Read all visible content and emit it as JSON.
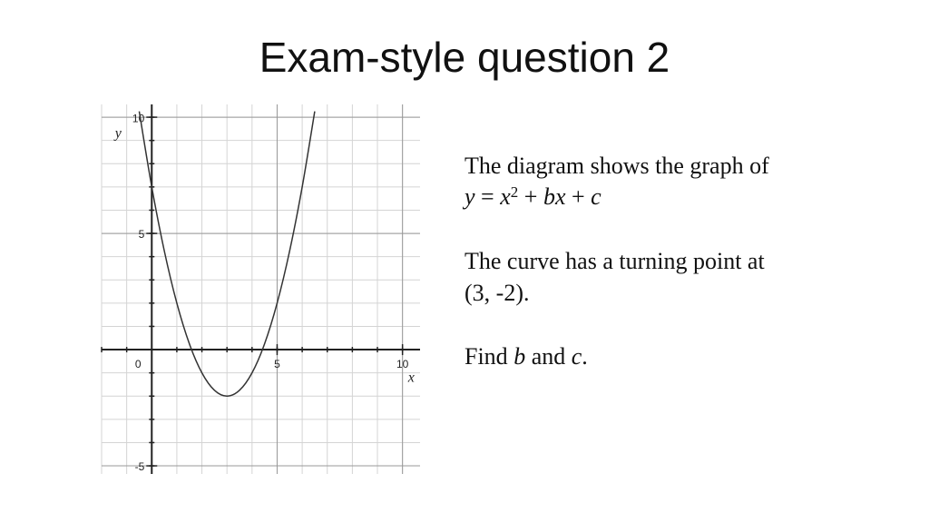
{
  "title": "Exam-style question 2",
  "chart_data": {
    "type": "line",
    "x": [
      -0.5,
      0,
      0.5,
      1,
      1.5,
      2,
      2.5,
      3,
      3.5,
      4,
      4.5,
      5,
      5.5,
      6,
      6.5
    ],
    "series": [
      {
        "color": "#333333",
        "values": [
          10.25,
          7,
          4.25,
          2,
          0.25,
          -1,
          -1.75,
          -2,
          -1.75,
          -1,
          0.25,
          2,
          4.25,
          7,
          10.25
        ]
      }
    ],
    "xlim": [
      -2,
      10.7
    ],
    "ylim": [
      -5.35,
      10.55
    ],
    "xticks": [
      0,
      5,
      10
    ],
    "yticks": [
      -5,
      5,
      10
    ],
    "xlabel": "x",
    "ylabel": "y",
    "grid": true,
    "minor_grid_step": 1
  },
  "question": {
    "line1": "The diagram shows the graph of",
    "equation": [
      "y",
      " = ",
      "x",
      "2",
      " + ",
      "bx",
      " + ",
      "c"
    ],
    "line3": "The curve has a turning point at",
    "line4": "(3, -2).",
    "find": [
      "Find ",
      "b",
      " and ",
      "c",
      "."
    ]
  }
}
